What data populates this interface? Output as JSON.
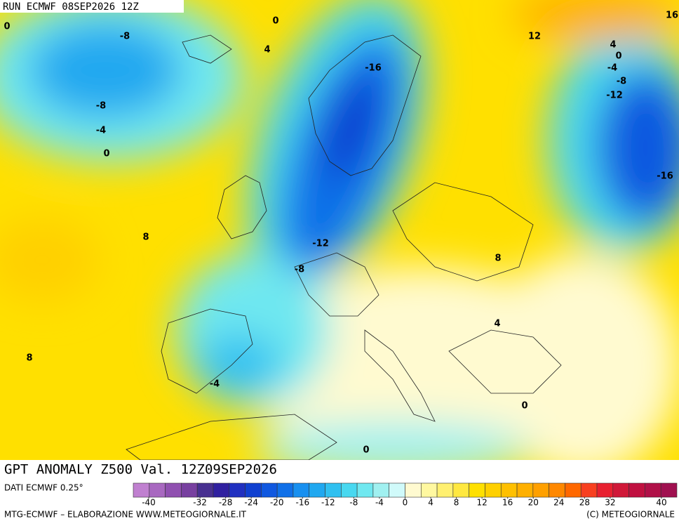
{
  "header": {
    "run": "RUN ECMWF 08SEP2026 12Z"
  },
  "title": "GPT ANOMALY Z500 Val. 12Z09SEP2026",
  "source": "DATI ECMWF 0.25°",
  "footer_left": "MTG-ECMWF – ELABORAZIONE WWW.METEOGIORNALE.IT",
  "footer_right": "(C) METEOGIORNALE",
  "contour_labels": [
    0,
    -8,
    0,
    4,
    -8,
    -4,
    0,
    8,
    8,
    -4,
    -16,
    -12,
    -8,
    8,
    4,
    0,
    0,
    12,
    4,
    0,
    -4,
    -8,
    -12,
    -16,
    16
  ],
  "colorbar": {
    "colors": [
      "#c080d0",
      "#a868c0",
      "#9050b0",
      "#7840a0",
      "#483090",
      "#3020a0",
      "#2030c0",
      "#1040d0",
      "#1058e0",
      "#1070e8",
      "#1890f0",
      "#20a8f0",
      "#30c0f0",
      "#48d8f0",
      "#70e8f0",
      "#a0f0f0",
      "#d0fafa",
      "#fffad0",
      "#fff8a0",
      "#fff070",
      "#ffe840",
      "#ffe000",
      "#ffd000",
      "#ffc000",
      "#ffb000",
      "#ffa000",
      "#ff8800",
      "#ff6800",
      "#f84020",
      "#e82030",
      "#d01838",
      "#c01040",
      "#b01048",
      "#a01050"
    ],
    "ticks": [
      -40,
      -32,
      -28,
      -24,
      -20,
      -16,
      -12,
      -8,
      -4,
      0,
      4,
      8,
      12,
      16,
      20,
      24,
      28,
      32,
      40
    ],
    "range": [
      -40,
      40
    ]
  }
}
